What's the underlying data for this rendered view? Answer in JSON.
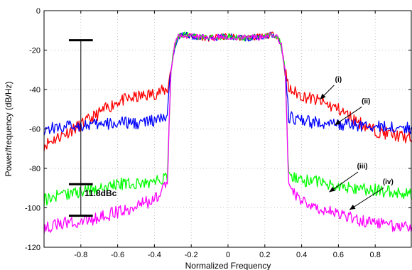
{
  "chart_data": {
    "type": "line",
    "xlabel": "Normalized Frequency",
    "ylabel": "Power/frequency (dB/Hz)",
    "xlim": [
      -1,
      1
    ],
    "ylim": [
      -120,
      0
    ],
    "xticks": [
      -0.8,
      -0.6,
      -0.4,
      -0.2,
      0,
      0.2,
      0.4,
      0.6,
      0.8
    ],
    "xtick_labels": [
      "-0.8",
      "-0.6",
      "-0.4",
      "-0.2",
      "0",
      "0.2",
      "0.4",
      "0.6",
      "0.8"
    ],
    "yticks": [
      -120,
      -100,
      -80,
      -60,
      -40,
      -20,
      0
    ],
    "ytick_labels": [
      "-120",
      "-100",
      "-80",
      "-60",
      "-40",
      "-20",
      "0"
    ],
    "grid": true,
    "series": [
      {
        "name": "(i)",
        "color": "#ff0000",
        "x": [
          -1,
          -0.9,
          -0.8,
          -0.7,
          -0.6,
          -0.5,
          -0.4,
          -0.33,
          -0.31,
          -0.29,
          -0.27,
          -0.25,
          -0.2,
          -0.1,
          0,
          0.1,
          0.2,
          0.25,
          0.27,
          0.29,
          0.31,
          0.33,
          0.4,
          0.5,
          0.6,
          0.7,
          0.8,
          0.9,
          1
        ],
        "y": [
          -68,
          -63,
          -58,
          -52,
          -46,
          -44,
          -42,
          -40,
          -30,
          -18,
          -13,
          -12,
          -13,
          -14,
          -13,
          -14,
          -13,
          -12,
          -13,
          -18,
          -30,
          -40,
          -43,
          -46,
          -50,
          -56,
          -61,
          -63,
          -65
        ]
      },
      {
        "name": "(ii)",
        "color": "#0000ff",
        "x": [
          -1,
          -0.9,
          -0.8,
          -0.7,
          -0.6,
          -0.5,
          -0.4,
          -0.33,
          -0.31,
          -0.29,
          -0.27,
          -0.25,
          -0.2,
          -0.1,
          0,
          0.1,
          0.2,
          0.25,
          0.27,
          0.29,
          0.31,
          0.33,
          0.4,
          0.5,
          0.6,
          0.7,
          0.8,
          0.9,
          1
        ],
        "y": [
          -60,
          -59,
          -58,
          -58,
          -57,
          -57,
          -56,
          -54,
          -30,
          -18,
          -13,
          -12,
          -13,
          -14,
          -13,
          -14,
          -13,
          -12,
          -13,
          -18,
          -30,
          -54,
          -56,
          -57,
          -58,
          -58,
          -59,
          -59,
          -60
        ]
      },
      {
        "name": "(iii)",
        "color": "#00ff00",
        "x": [
          -1,
          -0.9,
          -0.8,
          -0.7,
          -0.6,
          -0.5,
          -0.4,
          -0.33,
          -0.31,
          -0.29,
          -0.27,
          -0.25,
          -0.2,
          -0.1,
          0,
          0.1,
          0.2,
          0.25,
          0.27,
          0.29,
          0.31,
          0.33,
          0.4,
          0.5,
          0.6,
          0.7,
          0.8,
          0.9,
          1
        ],
        "y": [
          -96,
          -93,
          -92,
          -90,
          -88,
          -88,
          -87,
          -84,
          -30,
          -18,
          -13,
          -12,
          -13,
          -14,
          -13,
          -14,
          -13,
          -12,
          -13,
          -18,
          -30,
          -84,
          -86,
          -87,
          -89,
          -90,
          -91,
          -92,
          -93
        ]
      },
      {
        "name": "(iv)",
        "color": "#ff00ff",
        "x": [
          -1,
          -0.9,
          -0.8,
          -0.7,
          -0.6,
          -0.5,
          -0.4,
          -0.33,
          -0.31,
          -0.29,
          -0.27,
          -0.25,
          -0.2,
          -0.1,
          0,
          0.1,
          0.2,
          0.25,
          0.27,
          0.29,
          0.31,
          0.33,
          0.4,
          0.5,
          0.6,
          0.7,
          0.8,
          0.9,
          1
        ],
        "y": [
          -110,
          -108,
          -107,
          -105,
          -102,
          -99,
          -96,
          -88,
          -30,
          -18,
          -13,
          -12,
          -13,
          -14,
          -13,
          -14,
          -13,
          -12,
          -13,
          -18,
          -30,
          -88,
          -97,
          -100,
          -103,
          -106,
          -108,
          -109,
          -110
        ]
      }
    ],
    "annotations": [
      {
        "text": "(i)",
        "label_pos": [
          0.6,
          -36
        ],
        "arrow_to": [
          0.5,
          -45
        ]
      },
      {
        "text": "(ii)",
        "label_pos": [
          0.75,
          -47
        ],
        "arrow_to": [
          0.58,
          -58
        ]
      },
      {
        "text": "(iii)",
        "label_pos": [
          0.73,
          -80
        ],
        "arrow_to": [
          0.55,
          -92
        ]
      },
      {
        "text": "(iv)",
        "label_pos": [
          0.87,
          -88
        ],
        "arrow_to": [
          0.66,
          -101
        ]
      }
    ],
    "measurement": {
      "label": "11.8dBc",
      "x_center": -0.8,
      "bar_half_width": 0.065,
      "bar_levels": [
        -15,
        -88,
        -104
      ],
      "label_pos": [
        -0.78,
        -94
      ]
    }
  }
}
